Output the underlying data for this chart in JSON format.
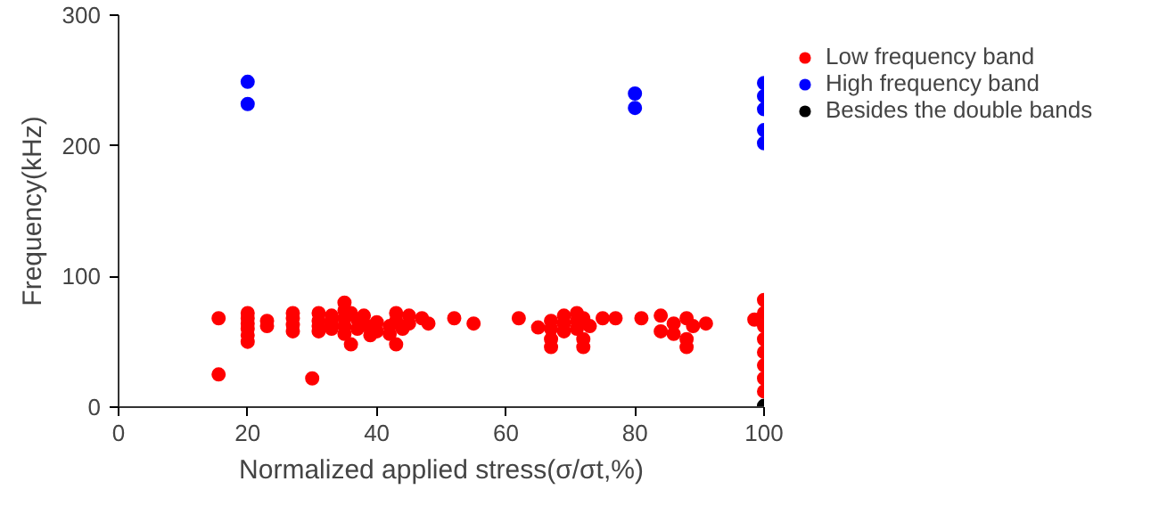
{
  "chart_data": {
    "type": "scatter",
    "xlabel": "Normalized applied stress(σ/σt,%)",
    "ylabel": "Frequency(kHz)",
    "xlim": [
      0,
      100
    ],
    "xticks": [
      0,
      20,
      40,
      60,
      80,
      100
    ],
    "ylim": [
      0,
      300
    ],
    "yticks": [
      0,
      100,
      200,
      300
    ],
    "grid": false,
    "legend": "top right",
    "marker": "circle",
    "series": [
      {
        "name": "Low frequency band",
        "color": "#ff0000",
        "x": [
          15.5,
          15.5,
          20,
          20,
          20,
          20,
          20,
          20,
          23,
          23,
          27,
          27,
          27,
          27,
          30,
          31,
          31,
          31,
          31,
          33,
          33,
          33,
          35,
          35,
          35,
          35,
          35,
          36,
          36,
          37,
          37,
          38,
          38,
          39,
          39,
          40,
          40,
          42,
          42,
          43,
          43,
          43,
          44,
          45,
          45,
          47,
          48,
          52,
          55,
          62,
          65,
          67,
          67,
          67,
          67,
          69,
          69,
          69,
          71,
          71,
          71,
          72,
          72,
          72,
          73,
          75,
          77,
          81,
          84,
          84,
          86,
          86,
          88,
          88,
          88,
          89,
          91,
          100,
          100,
          100,
          100,
          100,
          100,
          100,
          100,
          98.5
        ],
        "values": [
          68,
          25,
          72,
          68,
          64,
          60,
          55,
          50,
          66,
          62,
          72,
          68,
          63,
          58,
          22,
          72,
          66,
          62,
          58,
          70,
          65,
          60,
          80,
          74,
          68,
          62,
          56,
          48,
          72,
          67,
          60,
          70,
          64,
          60,
          55,
          65,
          58,
          62,
          56,
          72,
          66,
          48,
          60,
          70,
          64,
          68,
          64,
          68,
          64,
          68,
          61,
          66,
          60,
          52,
          46,
          70,
          64,
          58,
          72,
          66,
          60,
          68,
          52,
          46,
          62,
          68,
          68,
          68,
          70,
          58,
          64,
          56,
          68,
          52,
          46,
          62,
          64,
          82,
          72,
          62,
          52,
          42,
          32,
          22,
          12,
          67
        ]
      },
      {
        "name": "High frequency band",
        "color": "#0000ff",
        "x": [
          20,
          20,
          80,
          80,
          100,
          100,
          100,
          100,
          100
        ],
        "values": [
          249,
          232,
          240,
          229,
          248,
          238,
          228,
          212,
          202
        ]
      },
      {
        "name": "Besides the double bands",
        "color": "#000000",
        "x": [
          100
        ],
        "values": [
          1
        ]
      }
    ]
  }
}
